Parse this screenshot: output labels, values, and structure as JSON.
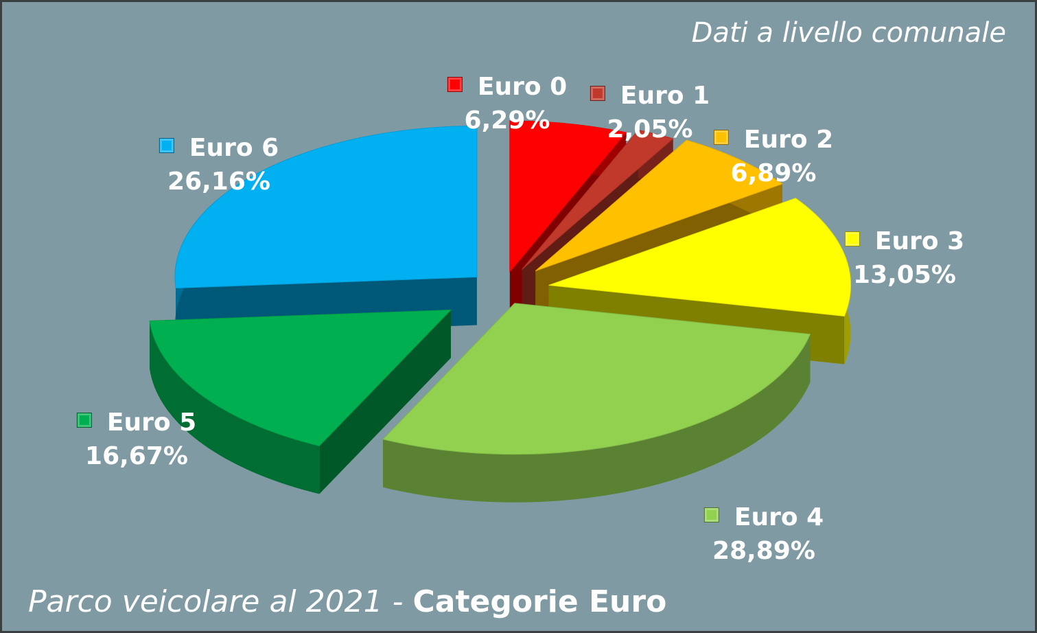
{
  "note": "Dati a livello comunale",
  "footer": {
    "italic_part": "Parco veicolare al 2021 - ",
    "bold_part": "Categorie Euro"
  },
  "chart_data": {
    "type": "pie",
    "style": "3d-exploded",
    "categories": [
      "Euro 0",
      "Euro 1",
      "Euro 2",
      "Euro 3",
      "Euro 4",
      "Euro 5",
      "Euro 6"
    ],
    "values": [
      6.29,
      2.05,
      6.89,
      13.05,
      28.89,
      16.67,
      26.16
    ],
    "value_labels": [
      "6,29%",
      "2,05%",
      "6,89%",
      "13,05%",
      "28,89%",
      "16,67%",
      "26,16%"
    ],
    "colors": [
      "#ff0000",
      "#c0392b",
      "#ffc000",
      "#ffff00",
      "#92d050",
      "#00b050",
      "#00b0f0"
    ]
  }
}
